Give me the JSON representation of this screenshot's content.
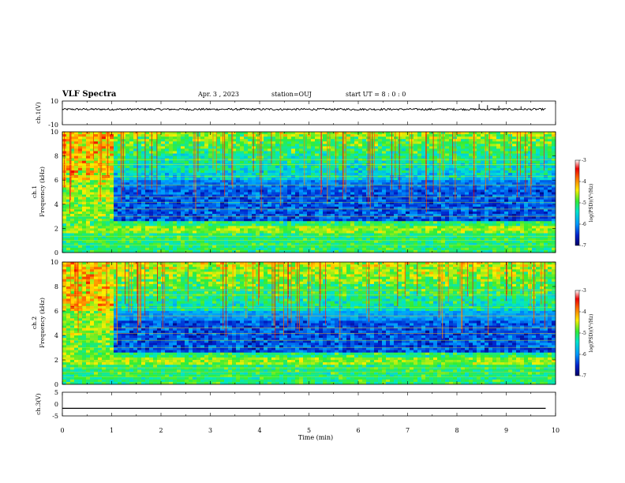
{
  "header": {
    "title": "VLF Spectra",
    "date": "Apr. 3 , 2023",
    "station": "station=OUJ",
    "start_time": "start UT = 8 : 0 : 0"
  },
  "chart_data": [
    {
      "type": "line",
      "name": "ch1-waveform",
      "ylabel": "ch.1(V)",
      "ylim": [
        -10,
        10
      ],
      "ytick_labels": [
        "10",
        "-10"
      ],
      "baseline": 3,
      "noise_amplitude": 0.8,
      "spikes": [
        {
          "x": 8.45,
          "y": 7.5
        },
        {
          "x": 8.62,
          "y": 6.5
        },
        {
          "x": 8.85,
          "y": 6
        },
        {
          "x": 9.3,
          "y": 5.5
        }
      ]
    },
    {
      "type": "heatmap",
      "name": "ch1-spectrogram",
      "ylabel": [
        "ch.1",
        "Frequency (kHz)"
      ],
      "ylim": [
        0,
        10
      ],
      "yticks": [
        0,
        2,
        4,
        6,
        8,
        10
      ],
      "xlim": [
        0,
        10
      ],
      "colorbar": {
        "label": "log(PSD)(V²/Hz)",
        "range": [
          -7,
          -3
        ],
        "ticks": [
          -3,
          -4,
          -5,
          -6,
          -7
        ],
        "tick_labels": [
          "-3",
          "-4",
          "-5",
          "-6",
          "-7"
        ],
        "colors": [
          "#000066",
          "#0022cc",
          "#0099ff",
          "#00e5cc",
          "#33ee33",
          "#ffee00",
          "#ff7700",
          "#ee0000",
          "#ffffff"
        ]
      }
    },
    {
      "type": "heatmap",
      "name": "ch2-spectrogram",
      "ylabel": [
        "ch.2",
        "Frequency (kHz)"
      ],
      "ylim": [
        0,
        10
      ],
      "yticks": [
        0,
        2,
        4,
        6,
        8,
        10
      ],
      "xlim": [
        0,
        10
      ],
      "colorbar": {
        "label": "log(PSD)(V²/Hz)",
        "range": [
          -7,
          -3
        ],
        "ticks": [
          -3,
          -4,
          -5,
          -6,
          -7
        ],
        "tick_labels": [
          "-3",
          "-4",
          "-5",
          "-6",
          "-7"
        ],
        "colors": [
          "#000066",
          "#0022cc",
          "#0099ff",
          "#00e5cc",
          "#33ee33",
          "#ffee00",
          "#ff7700",
          "#ee0000",
          "#ffffff"
        ]
      }
    },
    {
      "type": "line",
      "name": "ch3-waveform",
      "ylabel": "ch.3(V)",
      "ylim": [
        -5,
        5
      ],
      "ytick_labels": [
        "5",
        "0",
        "-5"
      ],
      "x": [
        0,
        9.8
      ],
      "y": [
        -1.8,
        -1.8
      ]
    }
  ],
  "xaxis": {
    "label": "Time (min)",
    "range": [
      0,
      10
    ],
    "ticks": [
      0,
      1,
      2,
      3,
      4,
      5,
      6,
      7,
      8,
      9,
      10
    ],
    "tick_labels": [
      "0",
      "1",
      "2",
      "3",
      "4",
      "5",
      "6",
      "7",
      "8",
      "9",
      "10"
    ]
  }
}
